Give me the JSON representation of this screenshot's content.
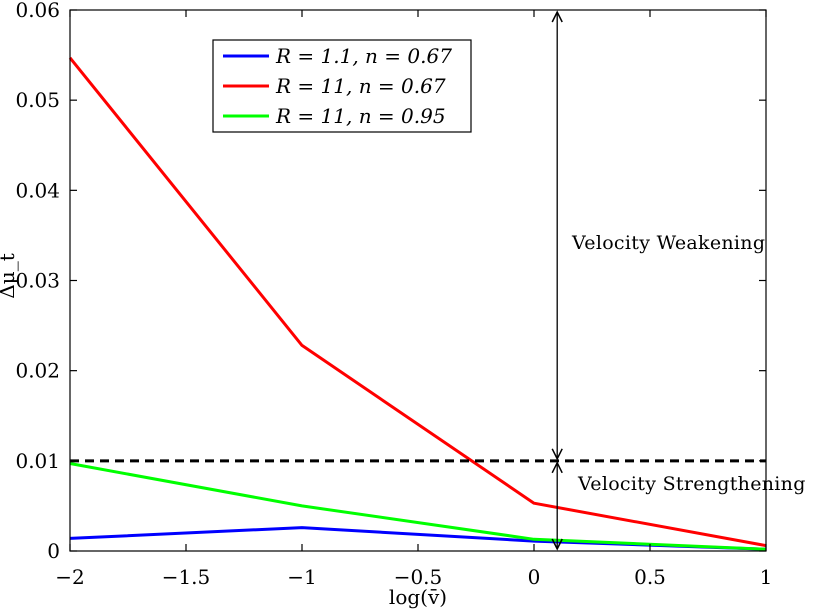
{
  "chart_data": {
    "type": "line",
    "xlabel": "log(v̄)",
    "ylabel": "Δμ_t",
    "xlim": [
      -2,
      1
    ],
    "ylim": [
      0,
      0.06
    ],
    "xticks": [
      {
        "value": -2,
        "label": "−2"
      },
      {
        "value": -1.5,
        "label": "−1.5"
      },
      {
        "value": -1,
        "label": "−1"
      },
      {
        "value": -0.5,
        "label": "−0.5"
      },
      {
        "value": 0,
        "label": "0"
      },
      {
        "value": 0.5,
        "label": "0.5"
      },
      {
        "value": 1,
        "label": "1"
      }
    ],
    "yticks": [
      {
        "value": 0,
        "label": "0"
      },
      {
        "value": 0.01,
        "label": "0.01"
      },
      {
        "value": 0.02,
        "label": "0.02"
      },
      {
        "value": 0.03,
        "label": "0.03"
      },
      {
        "value": 0.04,
        "label": "0.04"
      },
      {
        "value": 0.05,
        "label": "0.05"
      },
      {
        "value": 0.06,
        "label": "0.06"
      }
    ],
    "grid": false,
    "legend_position": "top-left",
    "series": [
      {
        "name": "R = 1.1, n = 0.67",
        "color": "#0000ff",
        "x": [
          -2,
          -1,
          0,
          1
        ],
        "y": [
          0.0014,
          0.0026,
          0.0011,
          0.0002
        ]
      },
      {
        "name": "R = 11, n = 0.67",
        "color": "#ff0000",
        "x": [
          -2,
          -1,
          0,
          1
        ],
        "y": [
          0.0547,
          0.0228,
          0.0053,
          0.0006
        ]
      },
      {
        "name": "R = 11, n = 0.95",
        "color": "#00ff00",
        "x": [
          -2,
          -1,
          0,
          1
        ],
        "y": [
          0.0097,
          0.005,
          0.0013,
          0.0002
        ]
      }
    ],
    "reference_line": {
      "y": 0.01,
      "style": "dashed",
      "color": "#000000"
    },
    "annotations": [
      {
        "text": "Velocity Weakening",
        "x": 0.1,
        "y_from": 0.01,
        "y_to": 0.06
      },
      {
        "text": "Velocity Strengthening",
        "x": 0.1,
        "y_from": 0.0,
        "y_to": 0.01
      }
    ]
  }
}
